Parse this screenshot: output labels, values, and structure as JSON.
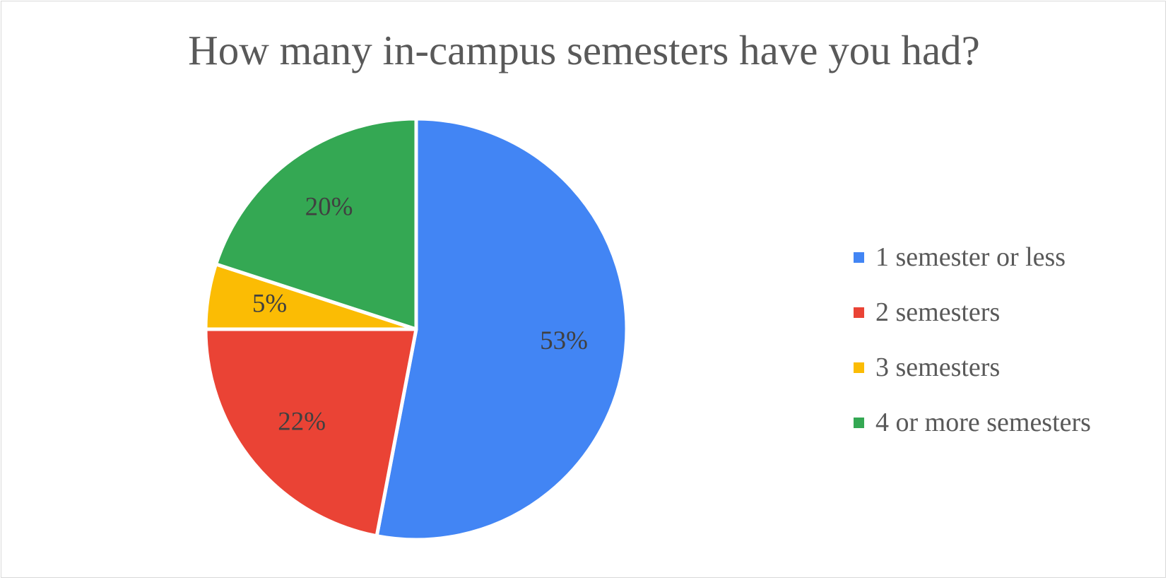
{
  "chart_data": {
    "type": "pie",
    "title": "How many in-campus semesters have you had?",
    "categories": [
      "1 semester or less",
      "2 semesters",
      "3 semesters",
      "4 or more semesters"
    ],
    "values": [
      53,
      22,
      5,
      20
    ],
    "value_labels": [
      "53%",
      "22%",
      "5%",
      "20%"
    ],
    "colors": [
      "#4285f4",
      "#ea4335",
      "#fbbc04",
      "#34a853"
    ],
    "legend_position": "right",
    "start_angle": "top, clockwise"
  }
}
